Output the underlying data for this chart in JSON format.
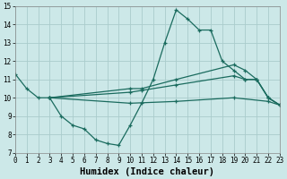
{
  "bg_color": "#cce8e8",
  "grid_color": "#aacccc",
  "line_color": "#1a6b5e",
  "line1_x": [
    0,
    1,
    2,
    3,
    4,
    5,
    6,
    7,
    8,
    9,
    10,
    11,
    12,
    13,
    14,
    15,
    16,
    17,
    18,
    19,
    20,
    21,
    22,
    23
  ],
  "line1_y": [
    11.3,
    10.5,
    10.0,
    10.0,
    9.0,
    8.5,
    8.3,
    7.7,
    7.5,
    7.4,
    8.5,
    9.7,
    11.0,
    13.0,
    14.8,
    14.3,
    13.7,
    13.7,
    12.0,
    11.5,
    11.0,
    11.0,
    10.0,
    9.6
  ],
  "line2_x": [
    3,
    10,
    11,
    14,
    19,
    20,
    21,
    22,
    23
  ],
  "line2_y": [
    10.0,
    10.5,
    10.5,
    11.0,
    11.8,
    11.5,
    11.0,
    10.0,
    9.6
  ],
  "line3_x": [
    3,
    10,
    11,
    14,
    19,
    20,
    21,
    22,
    23
  ],
  "line3_y": [
    10.0,
    10.3,
    10.4,
    10.7,
    11.2,
    11.0,
    11.0,
    10.0,
    9.6
  ],
  "line4_x": [
    3,
    10,
    14,
    19,
    22,
    23
  ],
  "line4_y": [
    10.0,
    9.7,
    9.8,
    10.0,
    9.8,
    9.6
  ],
  "xlabel": "Humidex (Indice chaleur)",
  "xlim": [
    0,
    23
  ],
  "ylim": [
    7,
    15
  ],
  "xticks": [
    0,
    1,
    2,
    3,
    4,
    5,
    6,
    7,
    8,
    9,
    10,
    11,
    12,
    13,
    14,
    15,
    16,
    17,
    18,
    19,
    20,
    21,
    22,
    23
  ],
  "yticks": [
    7,
    8,
    9,
    10,
    11,
    12,
    13,
    14,
    15
  ],
  "tick_fontsize": 5.5,
  "xlabel_fontsize": 7.5
}
